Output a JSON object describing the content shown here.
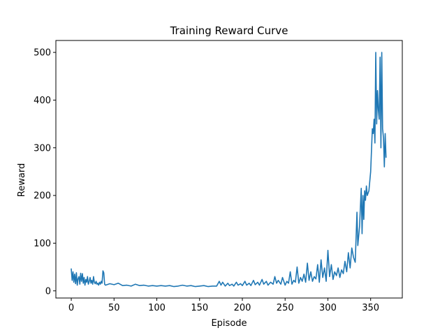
{
  "chart_data": {
    "type": "line",
    "title": "Training Reward Curve",
    "xlabel": "Episode",
    "ylabel": "Reward",
    "xlim": [
      -18,
      387
    ],
    "ylim": [
      -15,
      525
    ],
    "xticks": [
      0,
      50,
      100,
      150,
      200,
      250,
      300,
      350
    ],
    "yticks": [
      0,
      100,
      200,
      300,
      400,
      500
    ],
    "grid": false,
    "line_color": "#1f77b4",
    "series": [
      {
        "x": [
          0,
          1,
          2,
          3,
          4,
          5,
          6,
          7,
          8,
          9,
          10,
          11,
          12,
          13,
          14,
          15,
          16,
          17,
          18,
          19,
          20,
          21,
          22,
          23,
          24,
          25,
          26,
          27,
          28,
          29,
          30,
          31,
          32,
          33,
          34,
          35,
          36,
          37,
          38,
          39,
          40,
          45,
          50,
          55,
          60,
          65,
          70,
          75,
          80,
          85,
          90,
          95,
          100,
          105,
          110,
          115,
          120,
          125,
          130,
          135,
          140,
          145,
          150,
          155,
          160,
          165,
          170,
          173,
          175,
          177,
          180,
          183,
          185,
          188,
          190,
          193,
          195,
          198,
          200,
          203,
          205,
          208,
          210,
          213,
          215,
          218,
          220,
          223,
          225,
          228,
          230,
          233,
          236,
          238,
          240,
          242,
          245,
          247,
          250,
          252,
          254,
          256,
          258,
          260,
          262,
          264,
          266,
          268,
          270,
          272,
          274,
          276,
          278,
          280,
          282,
          284,
          286,
          288,
          290,
          292,
          294,
          296,
          298,
          300,
          302,
          304,
          306,
          308,
          310,
          312,
          314,
          316,
          318,
          320,
          322,
          324,
          326,
          328,
          330,
          332,
          334,
          335,
          337,
          339,
          340,
          341,
          342,
          343,
          344,
          345,
          346,
          348,
          350,
          352,
          353,
          354,
          355,
          356,
          357,
          358,
          359,
          360,
          361,
          362,
          363,
          364,
          365,
          366,
          367,
          368
        ],
        "y": [
          46,
          22,
          40,
          18,
          35,
          15,
          38,
          12,
          25,
          30,
          14,
          37,
          20,
          36,
          16,
          28,
          12,
          24,
          18,
          30,
          14,
          20,
          28,
          16,
          22,
          14,
          30,
          18,
          15,
          20,
          14,
          16,
          12,
          18,
          14,
          20,
          16,
          42,
          38,
          14,
          12,
          15,
          13,
          16,
          11,
          12,
          10,
          14,
          11,
          12,
          10,
          11,
          10,
          11,
          10,
          11,
          9,
          10,
          12,
          10,
          11,
          9,
          10,
          11,
          9,
          10,
          10,
          20,
          12,
          18,
          10,
          16,
          11,
          14,
          10,
          18,
          12,
          15,
          11,
          20,
          12,
          16,
          11,
          22,
          13,
          18,
          12,
          24,
          14,
          20,
          12,
          18,
          14,
          30,
          16,
          22,
          14,
          28,
          12,
          20,
          16,
          40,
          14,
          22,
          18,
          50,
          16,
          28,
          20,
          35,
          18,
          58,
          22,
          40,
          20,
          30,
          25,
          55,
          18,
          65,
          28,
          48,
          20,
          85,
          30,
          55,
          24,
          40,
          32,
          48,
          28,
          44,
          36,
          62,
          40,
          80,
          48,
          90,
          70,
          60,
          165,
          95,
          135,
          215,
          120,
          200,
          150,
          210,
          190,
          220,
          200,
          210,
          250,
          340,
          330,
          360,
          310,
          500,
          350,
          420,
          380,
          360,
          490,
          300,
          500,
          340,
          320,
          260,
          330,
          280
        ]
      }
    ]
  }
}
